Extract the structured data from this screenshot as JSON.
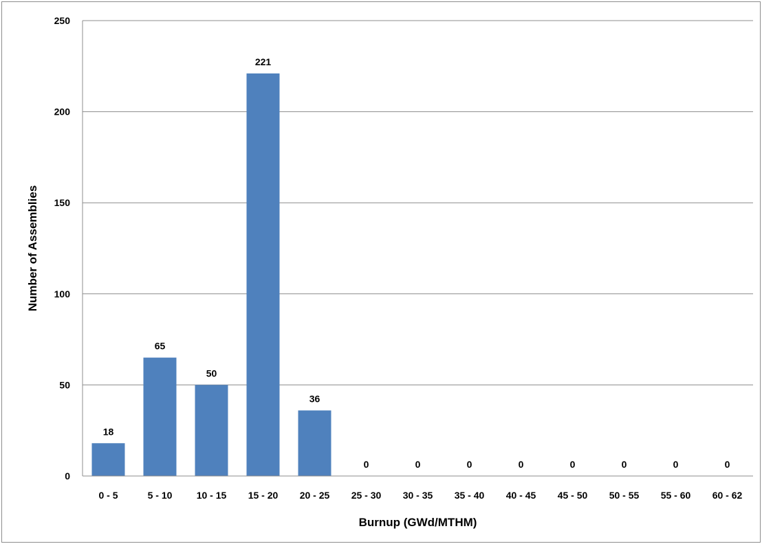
{
  "chart_data": {
    "type": "bar",
    "categories": [
      "0 - 5",
      "5 - 10",
      "10 - 15",
      "15 - 20",
      "20 - 25",
      "25 - 30",
      "30 - 35",
      "35 - 40",
      "40 - 45",
      "45 - 50",
      "50 - 55",
      "55 - 60",
      "60 - 62"
    ],
    "values": [
      18,
      65,
      50,
      221,
      36,
      0,
      0,
      0,
      0,
      0,
      0,
      0,
      0
    ],
    "data_labels": [
      "18",
      "65",
      "50",
      "221",
      "36",
      "0",
      "0",
      "0",
      "0",
      "0",
      "0",
      "0",
      "0"
    ],
    "xlabel": "Burnup (GWd/MTHM)",
    "ylabel": "Number of Assemblies",
    "ylim": [
      0,
      250
    ],
    "yticks": [
      0,
      50,
      100,
      150,
      200,
      250
    ],
    "ytick_labels": [
      "0",
      "50",
      "100",
      "150",
      "200",
      "250"
    ],
    "grid": "horizontal",
    "legend": "none",
    "bar_color": "#4f81bd"
  }
}
